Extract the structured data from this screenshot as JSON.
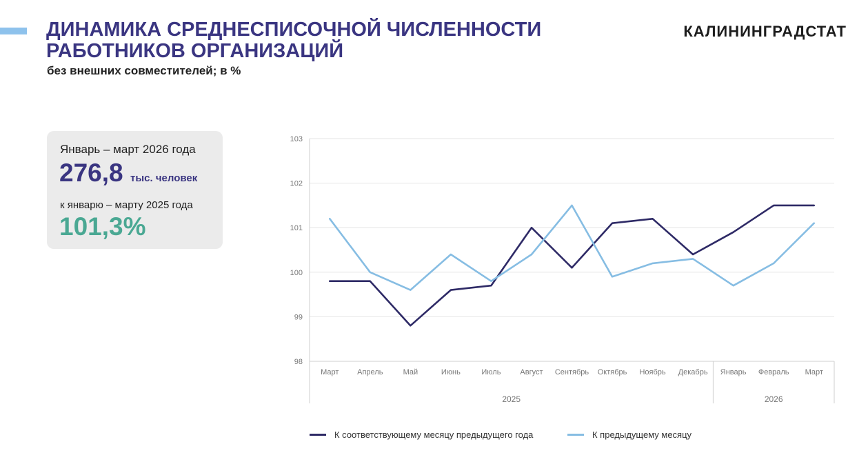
{
  "header": {
    "title_line1": "ДИНАМИКА СРЕДНЕСПИСОЧНОЙ ЧИСЛЕННОСТИ",
    "title_line2": "РАБОТНИКОВ ОРГАНИЗАЦИЙ",
    "subtitle": "без внешних совместителей; в %",
    "brand": "КАЛИНИНГРАДСТАТ"
  },
  "card": {
    "period": "Январь – март 2026 года",
    "value": "276,8",
    "unit": "тыс. человек",
    "compare_label": "к январю – марту 2025 года",
    "percent": "101,3%"
  },
  "colors": {
    "accent": "#8ec2ec",
    "title": "#3a3581",
    "percent": "#4aa893",
    "series_dark": "#2e2a66",
    "series_light": "#86bde3"
  },
  "chart_data": {
    "type": "line",
    "categories": [
      "Март",
      "Апрель",
      "Май",
      "Июнь",
      "Июль",
      "Август",
      "Сентябрь",
      "Октябрь",
      "Ноябрь",
      "Декабрь",
      "Январь",
      "Февраль",
      "Март"
    ],
    "year_groups": [
      {
        "label": "2025",
        "count": 10
      },
      {
        "label": "2026",
        "count": 3
      }
    ],
    "series": [
      {
        "name": "К соответствующему месяцу предыдущего года",
        "color": "#2e2a66",
        "values": [
          99.8,
          99.8,
          98.8,
          99.6,
          99.7,
          101.0,
          100.1,
          101.1,
          101.2,
          100.4,
          100.9,
          101.5,
          101.5
        ]
      },
      {
        "name": "К предыдущему месяцу",
        "color": "#86bde3",
        "values": [
          101.2,
          100.0,
          99.6,
          100.4,
          99.8,
          100.4,
          101.5,
          99.9,
          100.2,
          100.3,
          99.7,
          100.2,
          101.1
        ]
      }
    ],
    "ylim": [
      98,
      103
    ],
    "yticks": [
      "98",
      "99",
      "100",
      "101",
      "102",
      "103"
    ],
    "grid": true,
    "legend_position": "bottom"
  }
}
